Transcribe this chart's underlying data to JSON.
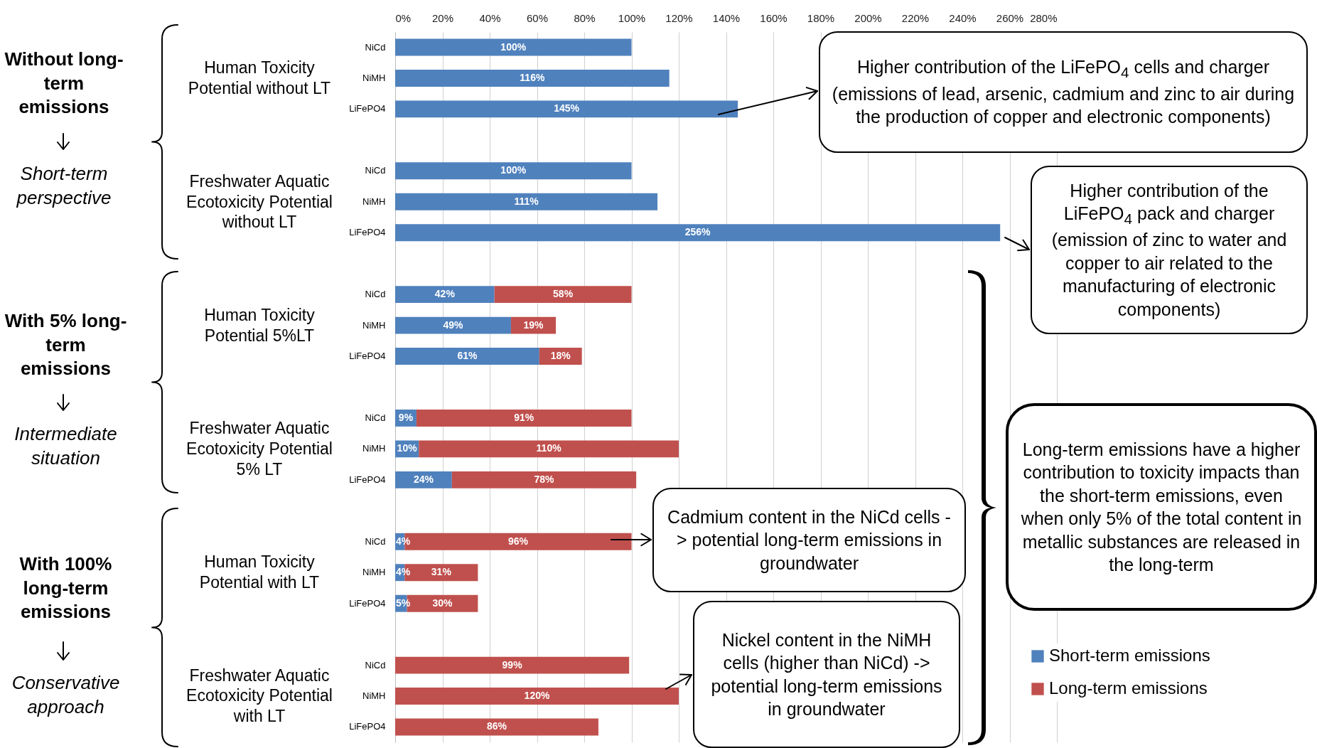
{
  "chart_data": {
    "type": "bar",
    "orientation": "horizontal",
    "stacked": true,
    "categories": [
      "NiCd",
      "NiMH",
      "LiFePO4",
      null,
      "NiCd",
      "NiMH",
      "LiFePO4",
      null,
      "NiCd",
      "NiMH",
      "LiFePO4",
      null,
      "NiCd",
      "NiMH",
      "LiFePO4",
      null,
      "NiCd",
      "NiMH",
      "LiFePO4",
      null,
      "NiCd",
      "NiMH",
      "LiFePO4"
    ],
    "series": [
      {
        "name": "Short-term emissions",
        "color": "#4f81bd",
        "values": [
          100,
          116,
          145,
          null,
          100,
          111,
          256,
          null,
          42,
          49,
          61,
          null,
          9,
          10,
          24,
          null,
          4,
          4,
          5,
          null,
          null,
          null,
          null
        ],
        "value_labels": [
          "100%",
          "116%",
          "145%",
          null,
          "100%",
          "111%",
          "256%",
          null,
          "42%",
          "49%",
          "61%",
          null,
          "9%",
          "10%",
          "24%",
          null,
          "4%",
          "4%",
          "5%",
          null,
          null,
          null,
          null
        ]
      },
      {
        "name": "Long-term emissions",
        "color": "#c0504d",
        "values": [
          null,
          null,
          null,
          null,
          null,
          null,
          null,
          null,
          58,
          19,
          18,
          null,
          91,
          110,
          78,
          null,
          96,
          31,
          30,
          null,
          99,
          120,
          86
        ],
        "value_labels": [
          null,
          null,
          null,
          null,
          null,
          null,
          null,
          null,
          "58%",
          "19%",
          "18%",
          null,
          "91%",
          "110%",
          "78%",
          null,
          "96%",
          "31%",
          "30%",
          null,
          "99%",
          "120%",
          "86%"
        ]
      }
    ],
    "xlim": [
      0,
      280
    ],
    "xticks": [
      {
        "value": 0,
        "label": "0%"
      },
      {
        "value": 20,
        "label": "20%"
      },
      {
        "value": 40,
        "label": "40%"
      },
      {
        "value": 60,
        "label": "60%"
      },
      {
        "value": 80,
        "label": "80%"
      },
      {
        "value": 100,
        "label": "100%"
      },
      {
        "value": 120,
        "label": "120%"
      },
      {
        "value": 140,
        "label": "140%"
      },
      {
        "value": 160,
        "label": "160%"
      },
      {
        "value": 180,
        "label": "180%"
      },
      {
        "value": 200,
        "label": "200%"
      },
      {
        "value": 220,
        "label": "220%"
      },
      {
        "value": 240,
        "label": "240%"
      },
      {
        "value": 260,
        "label": "260%"
      },
      {
        "value": 280,
        "label": "280%"
      }
    ],
    "grid": "x",
    "legend": "bottom right",
    "annotations": [
      "Without long-term emissions",
      "Short-term perspective",
      "With 5% long-term emissions",
      "Intermediate situation",
      "With 100% long-term emissions",
      "Conservative approach",
      "Human Toxicity Potential without LT",
      "Freshwater Aquatic Ecotoxicity Potential without LT",
      "Human Toxicity Potential 5%LT",
      "Freshwater Aquatic Ecotoxicity Potential 5% LT",
      "Human Toxicity Potential with LT",
      "Freshwater Aquatic Ecotoxicity Potential with LT",
      "Higher contribution of the LiFePO$_{4}$ cells and charger (emissions of lead, arsenic, cadmium and zinc to air during the production of copper and electronic components)",
      "Higher contribution of the LiFePO$_{4}$ pack and charger (emission of zinc to water and copper to air related to the manufacturing of electronic components)",
      "Long-term emissions have a higher contribution to toxicity impacts than the short-term emissions, even when only 5% of the total content in metallic substances are released in the long-term",
      "Cadmium content in the NiCd cells -> potential long-term emissions in groundwater",
      "Nickel content in the NiMH cells (higher than NiCd) -> potential long-term emissions in groundwater"
    ]
  }
}
